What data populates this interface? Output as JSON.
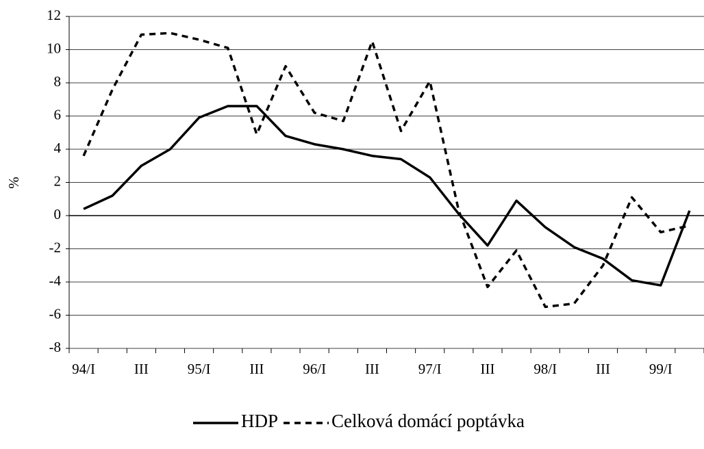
{
  "chart_data": {
    "type": "line",
    "y_label": "%",
    "categories": [
      "94/I",
      null,
      "III",
      null,
      "95/I",
      null,
      "III",
      null,
      "96/I",
      null,
      "III",
      null,
      "97/I",
      null,
      "III",
      null,
      "98/I",
      null,
      "III",
      null,
      "99/I",
      null
    ],
    "series": [
      {
        "name": "HDP",
        "color": "#000000",
        "dash": "solid",
        "values": [
          0.4,
          1.2,
          3.0,
          4.0,
          5.9,
          6.6,
          6.6,
          4.8,
          4.3,
          4.0,
          3.6,
          3.4,
          2.3,
          0.1,
          -1.8,
          0.9,
          -0.7,
          -1.9,
          -2.6,
          -3.9,
          -4.2,
          0.3
        ]
      },
      {
        "name": "Celková domácí poptávka",
        "color": "#000000",
        "dash": "dashed",
        "values": [
          3.6,
          7.6,
          10.9,
          11.0,
          10.6,
          10.1,
          4.9,
          9.0,
          6.2,
          5.7,
          10.5,
          5.1,
          8.1,
          0.3,
          -4.3,
          -2.1,
          -5.5,
          -5.3,
          -3.0,
          1.1,
          -1.0,
          -0.6
        ]
      }
    ],
    "ylim": [
      -8,
      12
    ],
    "yticks": [
      -8,
      -6,
      -4,
      -2,
      0,
      2,
      4,
      6,
      8,
      10,
      12
    ],
    "grid": true
  }
}
